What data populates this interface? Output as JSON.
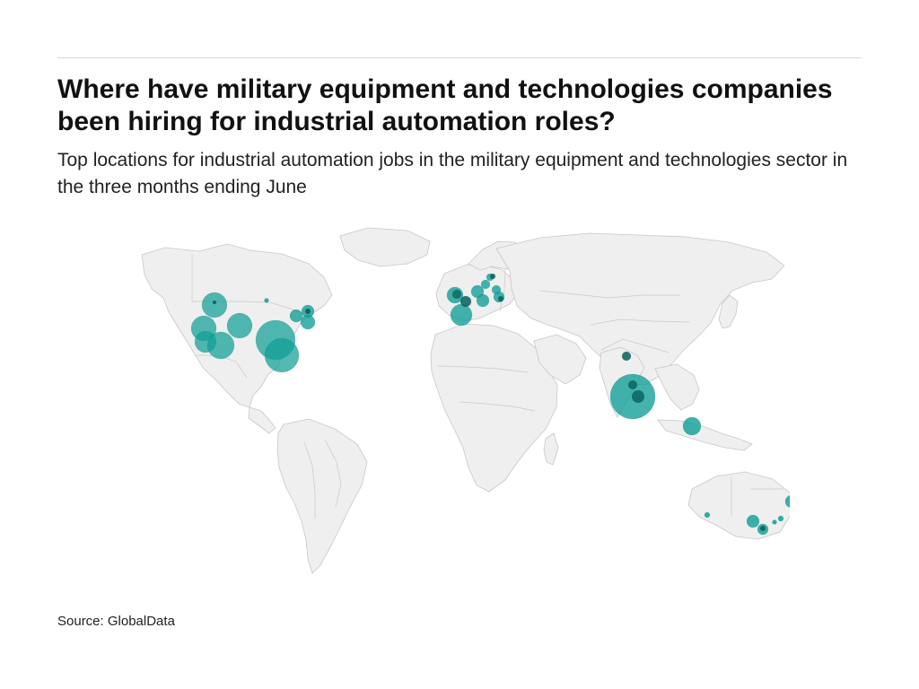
{
  "header": {
    "title": "Where have military equipment and technologies companies been hiring for industrial automation roles?",
    "subtitle": "Top locations for industrial automation jobs in the military equipment and technologies sector in the three months ending June"
  },
  "footer": {
    "source": "Source: GlobalData"
  },
  "map": {
    "type": "bubble-map",
    "region": "world",
    "bubble_color": "#0f9e96",
    "bubble_dark_color": "#075f5c",
    "land_color": "#efefef",
    "border_color": "#c9c9c9"
  }
}
